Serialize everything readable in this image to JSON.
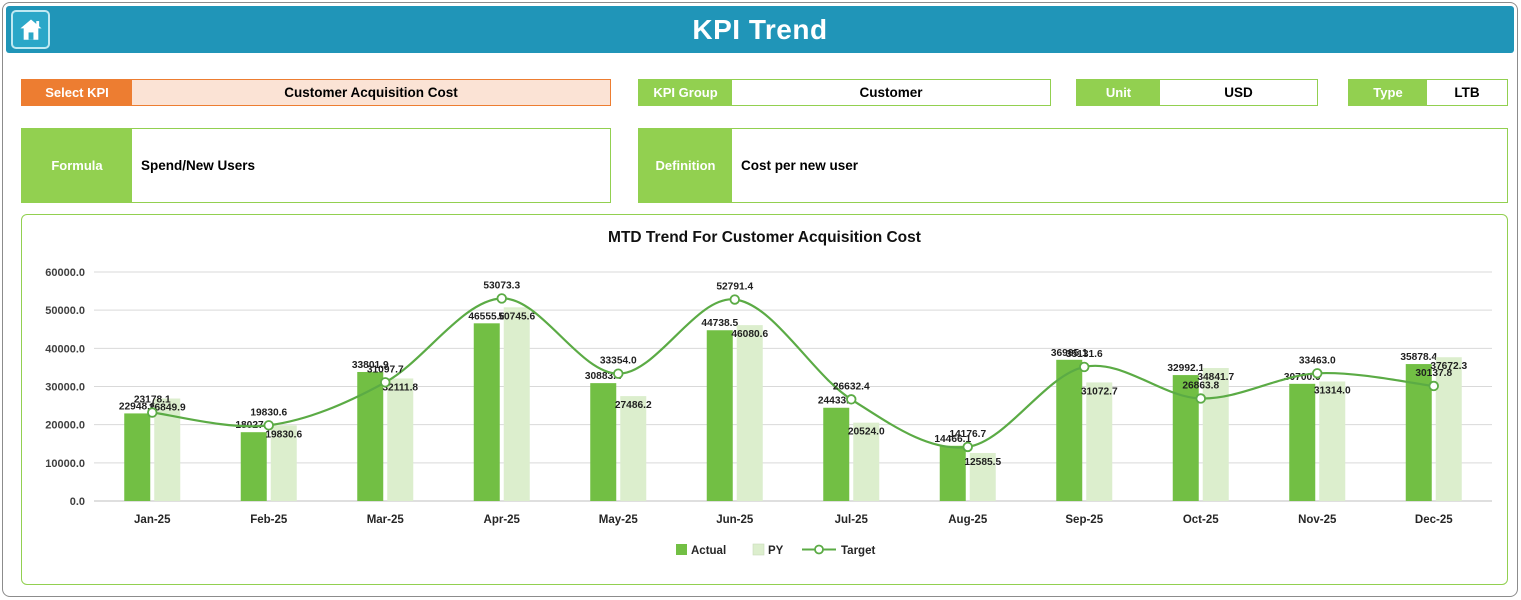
{
  "header": {
    "title": "KPI Trend",
    "home_icon": "home"
  },
  "controls": {
    "select_kpi": {
      "label": "Select KPI",
      "value": "Customer Acquisition Cost"
    },
    "kpi_group": {
      "label": "KPI Group",
      "value": "Customer"
    },
    "unit": {
      "label": "Unit",
      "value": "USD"
    },
    "type": {
      "label": "Type",
      "value": "LTB"
    },
    "formula": {
      "label": "Formula",
      "value": "Spend/New Users"
    },
    "definition": {
      "label": "Definition",
      "value": "Cost per new user"
    }
  },
  "colors": {
    "header_teal": "#2095b8",
    "label_green": "#92D050",
    "accent_orange": "#ED7D31",
    "kpi_field_fill": "#FBE3D5"
  },
  "chart_data": {
    "type": "bar",
    "subtype": "grouped-bars-with-line",
    "title": "MTD Trend For Customer Acquisition Cost",
    "categories": [
      "Jan-25",
      "Feb-25",
      "Mar-25",
      "Apr-25",
      "May-25",
      "Jun-25",
      "Jul-25",
      "Aug-25",
      "Sep-25",
      "Oct-25",
      "Nov-25",
      "Dec-25"
    ],
    "series": [
      {
        "name": "Actual",
        "type": "bar",
        "color": "#72BF44",
        "values": [
          22948.6,
          18027.9,
          33801.9,
          46555.6,
          30883.4,
          44738.5,
          24433.4,
          14466.1,
          36995.1,
          32992.1,
          30700.0,
          35878.4
        ]
      },
      {
        "name": "PY",
        "type": "bar",
        "color": "#DCEECD",
        "values": [
          26849.9,
          19830.6,
          32111.8,
          50745.6,
          27486.2,
          46080.6,
          20524.0,
          12585.5,
          31072.7,
          34841.7,
          31314.0,
          37672.3
        ]
      },
      {
        "name": "Target",
        "type": "line",
        "color": "#5BAB45",
        "values": [
          23178.1,
          19830.6,
          31097.7,
          53073.3,
          33354.0,
          52791.4,
          26632.4,
          14176.7,
          35131.6,
          26863.8,
          33463.0,
          30137.8
        ]
      }
    ],
    "xlabel": "",
    "ylabel": "",
    "ylim": [
      0,
      60000
    ],
    "ytick_step": 10000,
    "ytick_format": "one-decimal",
    "grid": true,
    "legend_position": "bottom"
  }
}
